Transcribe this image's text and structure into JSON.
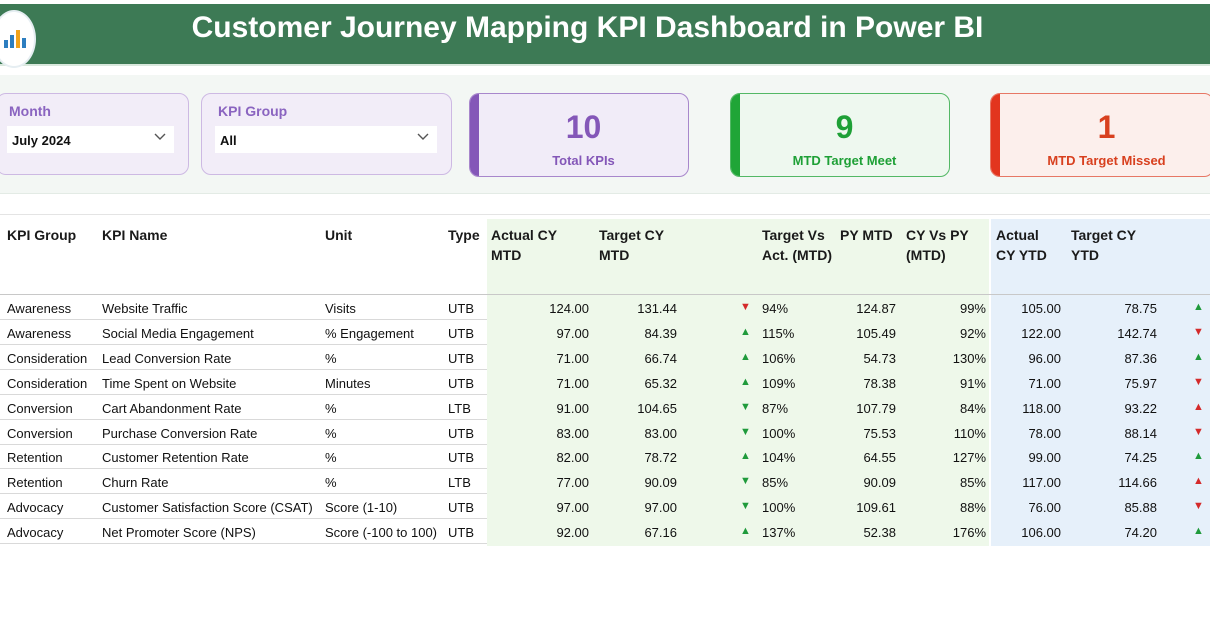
{
  "header": {
    "title": "Customer Journey Mapping KPI Dashboard in Power BI"
  },
  "filters": {
    "month": {
      "label": "Month",
      "value": "July 2024"
    },
    "kpi_group": {
      "label": "KPI Group",
      "value": "All"
    }
  },
  "cards": [
    {
      "value": "10",
      "caption": "Total KPIs"
    },
    {
      "value": "9",
      "caption": "MTD Target Meet"
    },
    {
      "value": "1",
      "caption": "MTD Target Missed"
    }
  ],
  "table": {
    "headers": {
      "kpi_group": "KPI Group",
      "kpi_name": "KPI Name",
      "unit": "Unit",
      "type": "Type",
      "actual_cy_mtd": "Actual CY MTD",
      "target_cy_mtd": "Target CY MTD",
      "target_vs_act": "Target Vs Act. (MTD)",
      "py_mtd": "PY MTD",
      "cy_vs_py": "CY Vs PY (MTD)",
      "actual_cy_ytd": "Actual CY YTD",
      "target_cy_ytd": "Target CY YTD"
    },
    "rows": [
      {
        "group": "Awareness",
        "name": "Website Traffic",
        "unit": "Visits",
        "type": "UTB",
        "actual_mtd": "124.00",
        "target_mtd": "131.44",
        "mtd_icon": "down",
        "tva": "94%",
        "py_mtd": "124.87",
        "cy_vs_py": "99%",
        "actual_ytd": "105.00",
        "target_ytd": "78.75",
        "ytd_icon": "up"
      },
      {
        "group": "Awareness",
        "name": "Social Media Engagement",
        "unit": "% Engagement",
        "type": "UTB",
        "actual_mtd": "97.00",
        "target_mtd": "84.39",
        "mtd_icon": "up",
        "tva": "115%",
        "py_mtd": "105.49",
        "cy_vs_py": "92%",
        "actual_ytd": "122.00",
        "target_ytd": "142.74",
        "ytd_icon": "down"
      },
      {
        "group": "Consideration",
        "name": "Lead Conversion Rate",
        "unit": "%",
        "type": "UTB",
        "actual_mtd": "71.00",
        "target_mtd": "66.74",
        "mtd_icon": "up",
        "tva": "106%",
        "py_mtd": "54.73",
        "cy_vs_py": "130%",
        "actual_ytd": "96.00",
        "target_ytd": "87.36",
        "ytd_icon": "up"
      },
      {
        "group": "Consideration",
        "name": "Time Spent on Website",
        "unit": "Minutes",
        "type": "UTB",
        "actual_mtd": "71.00",
        "target_mtd": "65.32",
        "mtd_icon": "up",
        "tva": "109%",
        "py_mtd": "78.38",
        "cy_vs_py": "91%",
        "actual_ytd": "71.00",
        "target_ytd": "75.97",
        "ytd_icon": "down"
      },
      {
        "group": "Conversion",
        "name": "Cart Abandonment Rate",
        "unit": "%",
        "type": "LTB",
        "actual_mtd": "91.00",
        "target_mtd": "104.65",
        "mtd_icon": "down-green",
        "tva": "87%",
        "py_mtd": "107.79",
        "cy_vs_py": "84%",
        "actual_ytd": "118.00",
        "target_ytd": "93.22",
        "ytd_icon": "up-red"
      },
      {
        "group": "Conversion",
        "name": "Purchase Conversion Rate",
        "unit": "%",
        "type": "UTB",
        "actual_mtd": "83.00",
        "target_mtd": "83.00",
        "mtd_icon": "down-green",
        "tva": "100%",
        "py_mtd": "75.53",
        "cy_vs_py": "110%",
        "actual_ytd": "78.00",
        "target_ytd": "88.14",
        "ytd_icon": "down"
      },
      {
        "group": "Retention",
        "name": "Customer Retention Rate",
        "unit": "%",
        "type": "UTB",
        "actual_mtd": "82.00",
        "target_mtd": "78.72",
        "mtd_icon": "up",
        "tva": "104%",
        "py_mtd": "64.55",
        "cy_vs_py": "127%",
        "actual_ytd": "99.00",
        "target_ytd": "74.25",
        "ytd_icon": "up"
      },
      {
        "group": "Retention",
        "name": "Churn Rate",
        "unit": "%",
        "type": "LTB",
        "actual_mtd": "77.00",
        "target_mtd": "90.09",
        "mtd_icon": "down-green",
        "tva": "85%",
        "py_mtd": "90.09",
        "cy_vs_py": "85%",
        "actual_ytd": "117.00",
        "target_ytd": "114.66",
        "ytd_icon": "up-red"
      },
      {
        "group": "Advocacy",
        "name": "Customer Satisfaction Score (CSAT)",
        "unit": "Score (1-10)",
        "type": "UTB",
        "actual_mtd": "97.00",
        "target_mtd": "97.00",
        "mtd_icon": "down-green",
        "tva": "100%",
        "py_mtd": "109.61",
        "cy_vs_py": "88%",
        "actual_ytd": "76.00",
        "target_ytd": "85.88",
        "ytd_icon": "down"
      },
      {
        "group": "Advocacy",
        "name": "Net Promoter Score (NPS)",
        "unit": "Score (-100 to 100)",
        "type": "UTB",
        "actual_mtd": "92.00",
        "target_mtd": "67.16",
        "mtd_icon": "up",
        "tva": "137%",
        "py_mtd": "52.38",
        "cy_vs_py": "176%",
        "actual_ytd": "106.00",
        "target_ytd": "74.20",
        "ytd_icon": "up"
      }
    ]
  },
  "colors": {
    "header_bg": "#3d7a55",
    "purple": "#8457b8",
    "green": "#20a537",
    "red": "#e2351e"
  }
}
